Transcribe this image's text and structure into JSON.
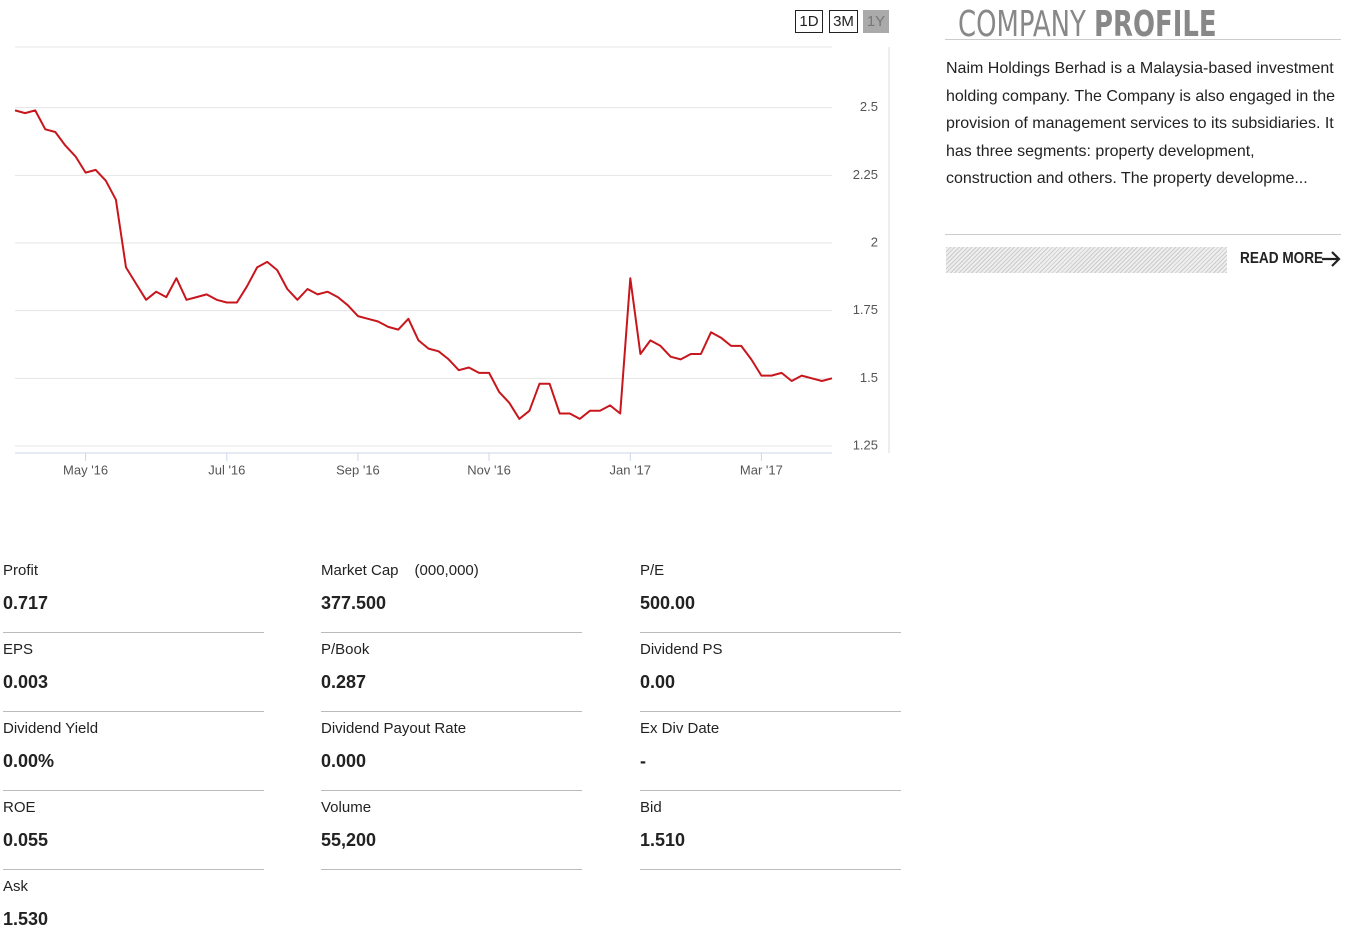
{
  "range_buttons": [
    {
      "label": "1D",
      "active": false
    },
    {
      "label": "3M",
      "active": false
    },
    {
      "label": "1Y",
      "active": true
    }
  ],
  "chart_data": {
    "type": "line",
    "color": "#c8161d",
    "grid": true,
    "categories": [
      null,
      null,
      null,
      null,
      null,
      null,
      null,
      "May '16",
      null,
      null,
      null,
      null,
      null,
      null,
      null,
      null,
      null,
      null,
      null,
      null,
      null,
      "Jul '16",
      null,
      null,
      null,
      null,
      null,
      null,
      null,
      null,
      null,
      null,
      null,
      null,
      "Sep '16",
      null,
      null,
      null,
      null,
      null,
      null,
      null,
      null,
      null,
      null,
      null,
      null,
      "Nov '16",
      null,
      null,
      null,
      null,
      null,
      null,
      null,
      null,
      null,
      null,
      null,
      null,
      null,
      "Jan '17",
      null,
      null,
      null,
      null,
      null,
      null,
      null,
      null,
      null,
      null,
      null,
      null,
      "Mar '17",
      null,
      null,
      null,
      null,
      null,
      null,
      null
    ],
    "values": [
      2.49,
      2.48,
      2.49,
      2.42,
      2.41,
      2.36,
      2.32,
      2.26,
      2.27,
      2.23,
      2.16,
      1.91,
      1.85,
      1.79,
      1.82,
      1.8,
      1.87,
      1.79,
      1.8,
      1.81,
      1.79,
      1.78,
      1.78,
      1.84,
      1.91,
      1.93,
      1.9,
      1.83,
      1.79,
      1.83,
      1.81,
      1.82,
      1.8,
      1.77,
      1.73,
      1.72,
      1.71,
      1.69,
      1.68,
      1.72,
      1.64,
      1.61,
      1.6,
      1.57,
      1.53,
      1.54,
      1.52,
      1.52,
      1.45,
      1.41,
      1.35,
      1.38,
      1.48,
      1.48,
      1.37,
      1.37,
      1.35,
      1.38,
      1.38,
      1.4,
      1.37,
      1.87,
      1.59,
      1.64,
      1.62,
      1.58,
      1.57,
      1.59,
      1.59,
      1.67,
      1.65,
      1.62,
      1.62,
      1.57,
      1.51,
      1.51,
      1.52,
      1.49,
      1.51,
      1.5,
      1.49,
      1.5
    ],
    "ylim": [
      1.25,
      2.75
    ],
    "yticks": [
      1.25,
      1.5,
      1.75,
      2,
      2.25,
      2.5
    ]
  },
  "profile": {
    "title_light": "COMPANY",
    "title_bold": "PROFILE",
    "text": "Naim Holdings Berhad is a Malaysia-based investment holding company. The Company is also engaged in the provision of management services to its subsidiaries. It has three segments: property development, construction and others. The property developme...",
    "read_more": "READ MORE"
  },
  "stats": [
    {
      "label": "Profit",
      "value": "0.717"
    },
    {
      "label": "Market Cap",
      "unit": "(000,000)",
      "value": "377.500"
    },
    {
      "label": "P/E",
      "value": "500.00"
    },
    {
      "label": "EPS",
      "value": "0.003"
    },
    {
      "label": "P/Book",
      "value": "0.287"
    },
    {
      "label": "Dividend PS",
      "value": "0.00"
    },
    {
      "label": "Dividend Yield",
      "value": "0.00%"
    },
    {
      "label": "Dividend Payout Rate",
      "value": "0.000"
    },
    {
      "label": "Ex Div Date",
      "value": "-"
    },
    {
      "label": "ROE",
      "value": "0.055"
    },
    {
      "label": "Volume",
      "value": "55,200"
    },
    {
      "label": "Bid",
      "value": "1.510"
    },
    {
      "label": "Ask",
      "value": "1.530"
    }
  ]
}
